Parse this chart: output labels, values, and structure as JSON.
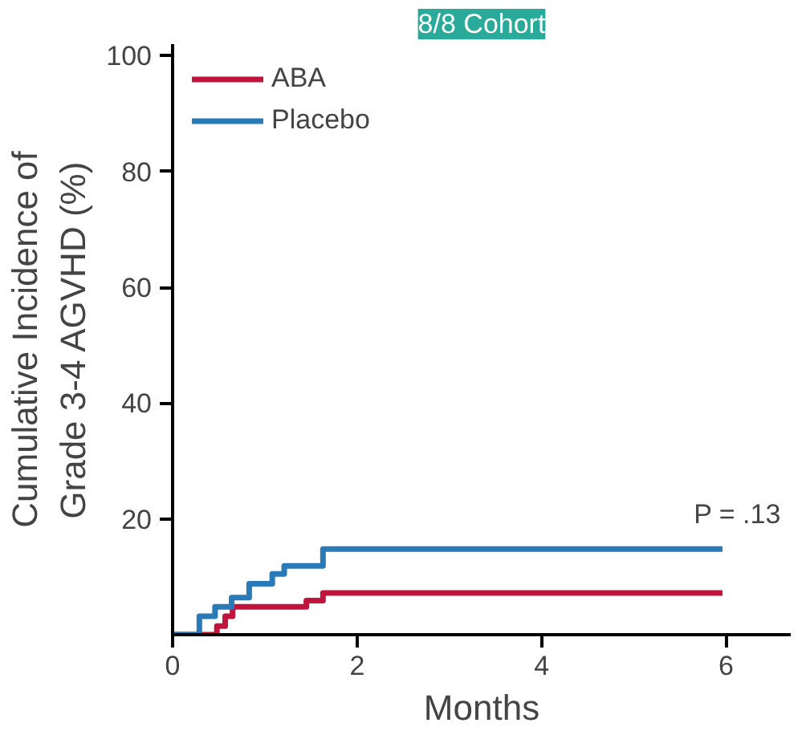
{
  "chart_data": {
    "type": "step",
    "title": "8/8 Cohort",
    "xlabel": "Months",
    "ylabel": "Cumulative Incidence of\nGrade 3-4 AGVHD (%)",
    "xlim": [
      0,
      6.7
    ],
    "ylim": [
      0,
      102
    ],
    "xticks": [
      0,
      2,
      4,
      6
    ],
    "yticks": [
      20,
      40,
      60,
      80,
      100
    ],
    "grid": false,
    "legend": "top left",
    "annotations": [
      "P = .13"
    ],
    "series": [
      {
        "name": "ABA",
        "color": "#c0143c",
        "x": [
          0,
          0.48,
          0.57,
          0.65,
          1.45,
          1.63,
          5.96
        ],
        "values": [
          0,
          1.5,
          3.2,
          4.8,
          5.9,
          7.2,
          7.2
        ]
      },
      {
        "name": "Placebo",
        "color": "#2a7ab8",
        "x": [
          0,
          0.29,
          0.46,
          0.64,
          0.83,
          1.08,
          1.21,
          1.63,
          5.96
        ],
        "values": [
          0,
          3.2,
          4.8,
          6.4,
          8.8,
          10.5,
          11.9,
          14.8,
          14.8
        ]
      }
    ]
  }
}
